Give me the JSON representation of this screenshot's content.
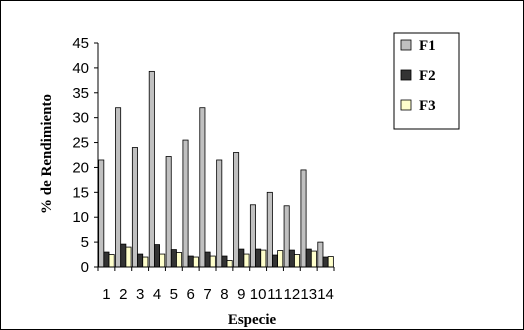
{
  "chart_data": {
    "type": "bar",
    "title": "",
    "xlabel": "Especie",
    "ylabel": "% de Rendimiento",
    "categories": [
      "1",
      "2",
      "3",
      "4",
      "5",
      "6",
      "7",
      "8",
      "9",
      "10",
      "11",
      "12",
      "13",
      "14"
    ],
    "ylim": [
      0,
      45
    ],
    "yticks": [
      "0",
      "5",
      "10",
      "15",
      "20",
      "25",
      "30",
      "35",
      "40",
      "45"
    ],
    "grid": false,
    "legend_position": "top-right",
    "series": [
      {
        "name": "F1",
        "color": "#c0c0c0",
        "values": [
          21.5,
          32,
          24,
          39.3,
          22.2,
          25.5,
          32,
          21.5,
          23,
          12.5,
          15,
          12.3,
          19.5,
          5
        ]
      },
      {
        "name": "F2",
        "color": "#333333",
        "values": [
          3,
          4.6,
          2.6,
          4.5,
          3.5,
          2.2,
          3,
          2.2,
          3.6,
          3.6,
          2.4,
          3.4,
          3.6,
          2
        ]
      },
      {
        "name": "F3",
        "color": "#ffffcc",
        "values": [
          2.5,
          4,
          2,
          2.6,
          2.9,
          2,
          2.2,
          1.3,
          2.6,
          3.4,
          3.3,
          2.5,
          3.2,
          2.1
        ]
      }
    ]
  }
}
